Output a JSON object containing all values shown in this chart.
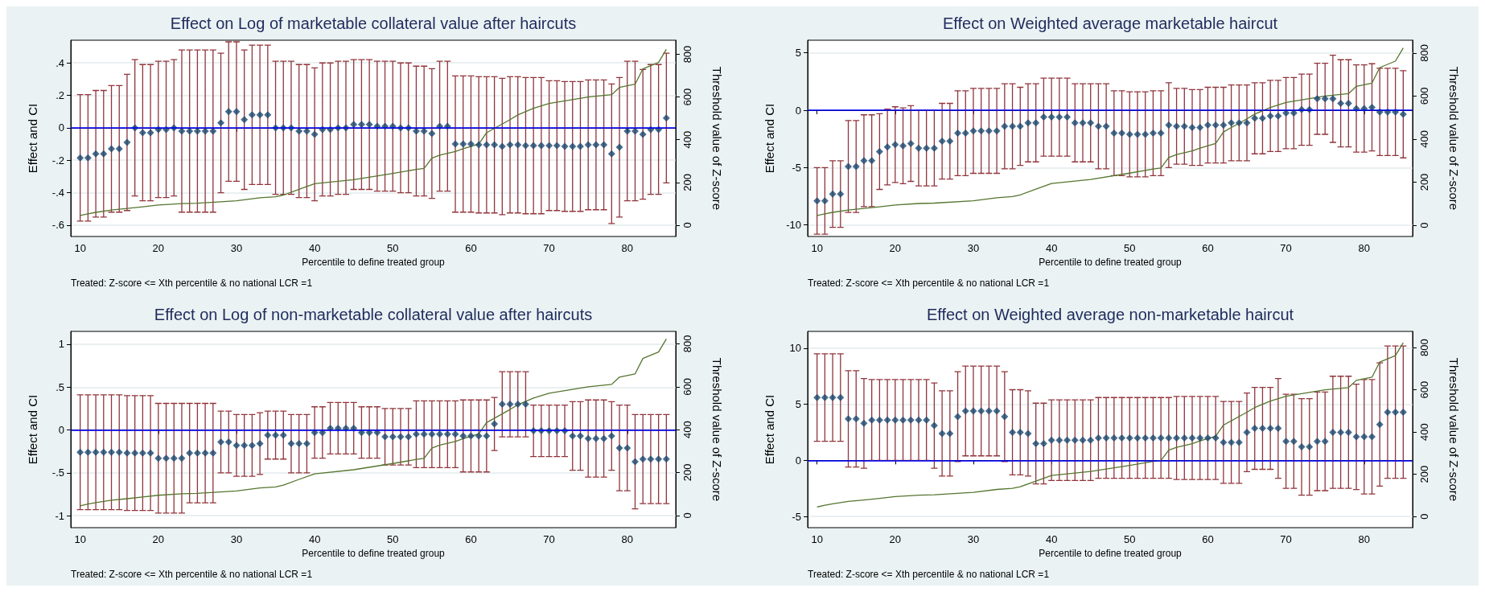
{
  "chart_data": [
    {
      "type": "scatter",
      "title": "Effect on Log of marketable collateral value after haircuts",
      "xlabel": "Percentile to define treated group",
      "ylabel": "Effect and CI",
      "y2label": "Threshold value of Z-score",
      "annotations": [
        "Treated: Z-score <= Xth percentile & no national LCR =1"
      ],
      "marker": "diamond",
      "grid": "y",
      "x": [
        10,
        11,
        12,
        13,
        14,
        15,
        16,
        17,
        18,
        19,
        20,
        21,
        22,
        23,
        24,
        25,
        26,
        27,
        28,
        29,
        30,
        31,
        32,
        33,
        34,
        35,
        36,
        37,
        38,
        39,
        40,
        41,
        42,
        43,
        44,
        45,
        46,
        47,
        48,
        49,
        50,
        51,
        52,
        53,
        54,
        55,
        56,
        57,
        58,
        59,
        60,
        61,
        62,
        63,
        64,
        65,
        66,
        67,
        68,
        69,
        70,
        71,
        72,
        73,
        74,
        75,
        76,
        77,
        78,
        79,
        80,
        81,
        82,
        83,
        84,
        85
      ],
      "xlim": [
        8.8,
        86.2
      ],
      "xticks": [
        10,
        20,
        30,
        40,
        50,
        60,
        70,
        80
      ],
      "ylim": [
        -0.67,
        0.54
      ],
      "yticks": [
        {
          "value": -0.6,
          "label": "-.6"
        },
        {
          "value": -0.4,
          "label": "-.4"
        },
        {
          "value": -0.2,
          "label": "-.2"
        },
        0,
        {
          "value": 0.2,
          "label": ".2"
        },
        {
          "value": 0.4,
          "label": ".4"
        }
      ],
      "y2lim": [
        -53,
        866
      ],
      "y2ticks": [
        0,
        200,
        400,
        600,
        800
      ],
      "ref_lines": [
        {
          "axis": "y",
          "value": 0,
          "color": "#0000ff"
        }
      ],
      "series": [
        {
          "color": "#1a476f",
          "values": [
            -0.185,
            -0.185,
            -0.16,
            -0.16,
            -0.13,
            -0.13,
            -0.09,
            0,
            -0.03,
            -0.03,
            -0.01,
            -0.01,
            0,
            -0.02,
            -0.02,
            -0.02,
            -0.02,
            -0.02,
            0.03,
            0.1,
            0.1,
            0.05,
            0.08,
            0.08,
            0.08,
            0,
            0,
            0,
            -0.02,
            -0.02,
            -0.04,
            -0.01,
            -0.01,
            0,
            0,
            0.02,
            0.02,
            0.02,
            0.01,
            0.01,
            0.01,
            0,
            0,
            -0.02,
            -0.02,
            -0.035,
            0.01,
            0.01,
            -0.1,
            -0.1,
            -0.1,
            -0.105,
            -0.105,
            -0.105,
            -0.115,
            -0.105,
            -0.105,
            -0.11,
            -0.11,
            -0.11,
            -0.11,
            -0.11,
            -0.115,
            -0.115,
            -0.115,
            -0.105,
            -0.105,
            -0.105,
            -0.16,
            -0.12,
            -0.02,
            -0.02,
            -0.04,
            -0.01,
            -0.01,
            0.06
          ],
          "errors": [
            0.39,
            0.39,
            0.39,
            0.39,
            0.39,
            0.39,
            0.42,
            0.42,
            0.42,
            0.42,
            0.42,
            0.42,
            0.42,
            0.5,
            0.5,
            0.5,
            0.5,
            0.5,
            0.43,
            0.43,
            0.43,
            0.43,
            0.43,
            0.43,
            0.43,
            0.41,
            0.41,
            0.41,
            0.41,
            0.41,
            0.41,
            0.41,
            0.41,
            0.41,
            0.41,
            0.4,
            0.4,
            0.4,
            0.4,
            0.4,
            0.4,
            0.4,
            0.4,
            0.4,
            0.4,
            0.4,
            0.4,
            0.4,
            0.42,
            0.42,
            0.42,
            0.42,
            0.42,
            0.42,
            0.42,
            0.42,
            0.42,
            0.42,
            0.42,
            0.42,
            0.4,
            0.4,
            0.4,
            0.4,
            0.4,
            0.4,
            0.4,
            0.4,
            0.43,
            0.43,
            0.43,
            0.43,
            0.4,
            0.4,
            0.4,
            0.4
          ]
        },
        {
          "type": "line",
          "axis": "y2",
          "marker": "none",
          "color": "#55752f",
          "x": [
            10,
            11,
            12,
            14,
            16,
            18,
            20,
            23,
            25,
            30,
            33,
            35,
            36,
            38,
            40,
            45,
            50,
            53,
            54,
            55,
            56,
            58,
            59,
            61,
            62,
            65,
            66,
            68,
            70,
            75,
            78,
            79,
            81,
            82,
            84,
            85
          ],
          "values": [
            45,
            53,
            60,
            71,
            78,
            86,
            94,
            101,
            103,
            114,
            128,
            133,
            141,
            168,
            194,
            213,
            242,
            261,
            266,
            314,
            328,
            345,
            358,
            380,
            433,
            494,
            516,
            547,
            570,
            600,
            611,
            645,
            660,
            732,
            762,
            823
          ]
        }
      ]
    },
    {
      "type": "scatter",
      "title": "Effect on Weighted average marketable haircut",
      "xlabel": "Percentile to define treated group",
      "ylabel": "Effect and CI",
      "y2label": "Threshold value of Z-score",
      "annotations": [
        "Treated: Z-score <= Xth percentile & no national LCR =1"
      ],
      "marker": "diamond",
      "grid": "y",
      "x": [
        10,
        11,
        12,
        13,
        14,
        15,
        16,
        17,
        18,
        19,
        20,
        21,
        22,
        23,
        24,
        25,
        26,
        27,
        28,
        29,
        30,
        31,
        32,
        33,
        34,
        35,
        36,
        37,
        38,
        39,
        40,
        41,
        42,
        43,
        44,
        45,
        46,
        47,
        48,
        49,
        50,
        51,
        52,
        53,
        54,
        55,
        56,
        57,
        58,
        59,
        60,
        61,
        62,
        63,
        64,
        65,
        66,
        67,
        68,
        69,
        70,
        71,
        72,
        73,
        74,
        75,
        76,
        77,
        78,
        79,
        80,
        81,
        82,
        83,
        84,
        85
      ],
      "xlim": [
        8.8,
        86.2
      ],
      "xticks": [
        10,
        20,
        30,
        40,
        50,
        60,
        70,
        80
      ],
      "ylim": [
        -11,
        6.1
      ],
      "yticks": [
        -10,
        -5,
        0,
        5
      ],
      "y2lim": [
        -52,
        859
      ],
      "y2ticks": [
        0,
        200,
        400,
        600,
        800
      ],
      "ref_lines": [
        {
          "axis": "y",
          "value": 0,
          "color": "#0000ff"
        }
      ],
      "series": [
        {
          "color": "#1a476f",
          "values": [
            -7.9,
            -7.9,
            -7.3,
            -7.3,
            -4.9,
            -4.9,
            -4.4,
            -4.4,
            -3.6,
            -3.2,
            -3.0,
            -3.1,
            -2.9,
            -3.3,
            -3.3,
            -3.3,
            -2.7,
            -2.7,
            -2.0,
            -2.0,
            -1.8,
            -1.8,
            -1.8,
            -1.8,
            -1.4,
            -1.4,
            -1.4,
            -1.1,
            -1.1,
            -0.6,
            -0.6,
            -0.6,
            -0.6,
            -1.1,
            -1.1,
            -1.1,
            -1.4,
            -1.4,
            -2.0,
            -2.0,
            -2.1,
            -2.1,
            -2.1,
            -2.0,
            -2.0,
            -1.3,
            -1.4,
            -1.4,
            -1.5,
            -1.5,
            -1.3,
            -1.3,
            -1.3,
            -1.1,
            -1.1,
            -1.1,
            -0.7,
            -0.7,
            -0.5,
            -0.5,
            -0.25,
            -0.25,
            0.05,
            0.05,
            1.0,
            1.0,
            1.0,
            0.6,
            0.6,
            0.15,
            0.15,
            0.25,
            -0.15,
            -0.15,
            -0.15,
            -0.35
          ],
          "errors": [
            2.9,
            2.9,
            2.9,
            2.9,
            4.0,
            4.0,
            4.0,
            4.0,
            3.3,
            3.3,
            3.3,
            3.3,
            3.3,
            3.3,
            3.3,
            3.3,
            3.3,
            3.3,
            3.7,
            3.7,
            3.7,
            3.7,
            3.7,
            3.7,
            3.7,
            3.7,
            3.4,
            3.4,
            3.4,
            3.4,
            3.4,
            3.4,
            3.4,
            3.4,
            3.4,
            3.4,
            3.7,
            3.7,
            3.7,
            3.7,
            3.7,
            3.7,
            3.7,
            3.7,
            3.7,
            3.7,
            3.3,
            3.3,
            3.3,
            3.3,
            3.3,
            3.3,
            3.3,
            3.3,
            3.3,
            3.3,
            3.1,
            3.1,
            3.1,
            3.1,
            3.1,
            3.1,
            3.1,
            3.1,
            3.1,
            3.1,
            3.8,
            3.8,
            3.8,
            3.8,
            3.8,
            3.8,
            3.8,
            3.8,
            3.8,
            3.8
          ]
        },
        {
          "type": "line",
          "axis": "y2",
          "marker": "none",
          "color": "#55752f",
          "x": [
            10,
            11,
            12,
            14,
            16,
            18,
            20,
            23,
            25,
            30,
            33,
            35,
            36,
            38,
            40,
            45,
            50,
            53,
            54,
            55,
            56,
            58,
            59,
            61,
            62,
            65,
            66,
            68,
            70,
            75,
            78,
            79,
            81,
            82,
            84,
            85
          ],
          "values": [
            45,
            53,
            60,
            71,
            78,
            86,
            94,
            101,
            103,
            114,
            128,
            133,
            141,
            168,
            194,
            213,
            242,
            261,
            266,
            314,
            328,
            345,
            358,
            380,
            433,
            494,
            516,
            547,
            570,
            600,
            611,
            645,
            660,
            732,
            762,
            823
          ]
        }
      ]
    },
    {
      "type": "scatter",
      "title": "Effect on Log of non-marketable collateral value after haircuts",
      "xlabel": "Percentile to define treated group",
      "ylabel": "Effect and CI",
      "y2label": "Threshold value of Z-score",
      "annotations": [
        "Treated: Z-score <= Xth percentile & no national LCR =1"
      ],
      "marker": "diamond",
      "grid": "y",
      "x": [
        10,
        11,
        12,
        13,
        14,
        15,
        16,
        17,
        18,
        19,
        20,
        21,
        22,
        23,
        24,
        25,
        26,
        27,
        28,
        29,
        30,
        31,
        32,
        33,
        34,
        35,
        36,
        37,
        38,
        39,
        40,
        41,
        42,
        43,
        44,
        45,
        46,
        47,
        48,
        49,
        50,
        51,
        52,
        53,
        54,
        55,
        56,
        57,
        58,
        59,
        60,
        61,
        62,
        63,
        64,
        65,
        66,
        67,
        68,
        69,
        70,
        71,
        72,
        73,
        74,
        75,
        76,
        77,
        78,
        79,
        80,
        81,
        82,
        83,
        84,
        85
      ],
      "xlim": [
        8.8,
        86.2
      ],
      "xticks": [
        10,
        20,
        30,
        40,
        50,
        60,
        70,
        80
      ],
      "ylim": [
        -1.14,
        1.15
      ],
      "yticks": [
        -1,
        {
          "value": -0.5,
          "label": "-.5"
        },
        0,
        {
          "value": 0.5,
          "label": ".5"
        },
        1
      ],
      "y2lim": [
        -57,
        858
      ],
      "y2ticks": [
        0,
        200,
        400,
        600,
        800
      ],
      "ref_lines": [
        {
          "axis": "y",
          "value": 0,
          "color": "#0000ff"
        }
      ],
      "series": [
        {
          "color": "#1a476f",
          "values": [
            -0.26,
            -0.26,
            -0.26,
            -0.26,
            -0.26,
            -0.26,
            -0.27,
            -0.27,
            -0.27,
            -0.27,
            -0.33,
            -0.33,
            -0.33,
            -0.33,
            -0.27,
            -0.27,
            -0.27,
            -0.27,
            -0.14,
            -0.14,
            -0.18,
            -0.18,
            -0.18,
            -0.16,
            -0.06,
            -0.06,
            -0.06,
            -0.16,
            -0.16,
            -0.16,
            -0.03,
            -0.03,
            0.02,
            0.02,
            0.02,
            0.02,
            -0.03,
            -0.03,
            -0.03,
            -0.08,
            -0.08,
            -0.08,
            -0.08,
            -0.05,
            -0.05,
            -0.05,
            -0.05,
            -0.05,
            -0.05,
            -0.07,
            -0.07,
            -0.07,
            -0.07,
            0.07,
            0.3,
            0.3,
            0.3,
            0.3,
            -0.01,
            -0.01,
            -0.01,
            -0.01,
            -0.01,
            -0.07,
            -0.07,
            -0.1,
            -0.1,
            -0.1,
            -0.07,
            -0.21,
            -0.21,
            -0.37,
            -0.34,
            -0.34,
            -0.34,
            -0.34
          ],
          "errors": [
            0.67,
            0.67,
            0.67,
            0.67,
            0.67,
            0.67,
            0.67,
            0.67,
            0.67,
            0.67,
            0.64,
            0.64,
            0.64,
            0.64,
            0.58,
            0.58,
            0.58,
            0.58,
            0.36,
            0.36,
            0.36,
            0.36,
            0.36,
            0.36,
            0.28,
            0.28,
            0.28,
            0.34,
            0.34,
            0.34,
            0.3,
            0.3,
            0.3,
            0.3,
            0.3,
            0.3,
            0.3,
            0.3,
            0.3,
            0.33,
            0.33,
            0.33,
            0.33,
            0.39,
            0.39,
            0.39,
            0.39,
            0.39,
            0.39,
            0.42,
            0.42,
            0.42,
            0.42,
            0.31,
            0.38,
            0.38,
            0.38,
            0.38,
            0.3,
            0.3,
            0.3,
            0.3,
            0.3,
            0.4,
            0.4,
            0.45,
            0.45,
            0.45,
            0.4,
            0.5,
            0.5,
            0.55,
            0.52,
            0.52,
            0.52,
            0.52
          ]
        },
        {
          "type": "line",
          "axis": "y2",
          "marker": "none",
          "color": "#55752f",
          "x": [
            10,
            11,
            12,
            14,
            16,
            18,
            20,
            23,
            25,
            30,
            33,
            35,
            36,
            38,
            40,
            45,
            50,
            53,
            54,
            55,
            56,
            58,
            59,
            61,
            62,
            65,
            66,
            68,
            70,
            75,
            78,
            79,
            81,
            82,
            84,
            85
          ],
          "values": [
            45,
            53,
            60,
            71,
            78,
            86,
            94,
            101,
            103,
            114,
            128,
            133,
            141,
            168,
            194,
            213,
            242,
            261,
            266,
            314,
            328,
            345,
            358,
            380,
            433,
            494,
            516,
            547,
            570,
            600,
            611,
            645,
            660,
            732,
            762,
            823
          ]
        }
      ]
    },
    {
      "type": "scatter",
      "title": "Effect on Weighted average non-marketable haircut",
      "xlabel": "Percentile to define treated group",
      "ylabel": "Effect and CI",
      "y2label": "Threshold value of Z-score",
      "annotations": [
        "Treated: Z-score <= Xth percentile & no national LCR =1"
      ],
      "marker": "diamond",
      "grid": "y",
      "x": [
        10,
        11,
        12,
        13,
        14,
        15,
        16,
        17,
        18,
        19,
        20,
        21,
        22,
        23,
        24,
        25,
        26,
        27,
        28,
        29,
        30,
        31,
        32,
        33,
        34,
        35,
        36,
        37,
        38,
        39,
        40,
        41,
        42,
        43,
        44,
        45,
        46,
        47,
        48,
        49,
        50,
        51,
        52,
        53,
        54,
        55,
        56,
        57,
        58,
        59,
        60,
        61,
        62,
        63,
        64,
        65,
        66,
        67,
        68,
        69,
        70,
        71,
        72,
        73,
        74,
        75,
        76,
        77,
        78,
        79,
        80,
        81,
        82,
        83,
        84,
        85
      ],
      "xlim": [
        8.8,
        86.2
      ],
      "xticks": [
        10,
        20,
        30,
        40,
        50,
        60,
        70,
        80
      ],
      "ylim": [
        -6,
        11.5
      ],
      "yticks": [
        -5,
        0,
        5,
        10
      ],
      "y2lim": [
        -53,
        877
      ],
      "y2ticks": [
        0,
        200,
        400,
        600,
        800
      ],
      "ref_lines": [
        {
          "axis": "y",
          "value": 0,
          "color": "#0000ff"
        }
      ],
      "series": [
        {
          "color": "#1a476f",
          "values": [
            5.6,
            5.6,
            5.6,
            5.6,
            3.7,
            3.7,
            3.3,
            3.6,
            3.6,
            3.6,
            3.6,
            3.6,
            3.6,
            3.6,
            3.6,
            3.1,
            2.4,
            2.4,
            3.9,
            4.4,
            4.4,
            4.4,
            4.4,
            4.4,
            3.9,
            2.5,
            2.5,
            2.4,
            1.5,
            1.5,
            1.8,
            1.8,
            1.8,
            1.8,
            1.8,
            1.8,
            2.0,
            2.0,
            2.0,
            2.0,
            2.0,
            2.0,
            2.0,
            2.0,
            2.0,
            2.0,
            2.0,
            2.0,
            2.0,
            2.0,
            2.0,
            2.0,
            1.6,
            1.6,
            1.6,
            2.5,
            2.85,
            2.85,
            2.85,
            2.85,
            1.7,
            1.7,
            1.2,
            1.2,
            1.7,
            1.7,
            2.5,
            2.5,
            2.5,
            2.1,
            2.1,
            2.1,
            3.2,
            4.3,
            4.3,
            4.3
          ],
          "errors": [
            3.9,
            3.9,
            3.9,
            3.9,
            4.3,
            4.3,
            4.0,
            3.6,
            3.6,
            3.6,
            3.6,
            3.6,
            3.6,
            3.6,
            3.6,
            3.8,
            3.8,
            3.8,
            4.0,
            4.0,
            4.0,
            4.0,
            4.0,
            4.0,
            4.0,
            3.8,
            3.8,
            3.8,
            3.6,
            3.6,
            3.6,
            3.6,
            3.6,
            3.6,
            3.6,
            3.6,
            3.6,
            3.6,
            3.6,
            3.6,
            3.6,
            3.6,
            3.6,
            3.6,
            3.6,
            3.6,
            3.7,
            3.7,
            3.7,
            3.7,
            3.7,
            3.7,
            3.65,
            3.65,
            3.65,
            3.5,
            3.65,
            3.65,
            3.65,
            4.45,
            4.2,
            4.2,
            4.3,
            4.3,
            4.4,
            4.4,
            5.0,
            5.0,
            5.0,
            4.7,
            5.1,
            5.1,
            5.5,
            5.9,
            5.9,
            5.9
          ]
        },
        {
          "type": "line",
          "axis": "y2",
          "marker": "none",
          "color": "#55752f",
          "x": [
            10,
            11,
            12,
            14,
            16,
            18,
            20,
            23,
            25,
            30,
            33,
            35,
            36,
            38,
            40,
            45,
            50,
            53,
            54,
            55,
            56,
            58,
            59,
            61,
            62,
            65,
            66,
            68,
            70,
            75,
            78,
            79,
            81,
            82,
            84,
            85
          ],
          "values": [
            45,
            53,
            60,
            71,
            78,
            86,
            94,
            101,
            103,
            114,
            128,
            133,
            141,
            168,
            194,
            213,
            242,
            261,
            266,
            314,
            328,
            345,
            358,
            380,
            433,
            494,
            516,
            547,
            570,
            600,
            611,
            645,
            660,
            732,
            762,
            823
          ]
        }
      ]
    }
  ]
}
